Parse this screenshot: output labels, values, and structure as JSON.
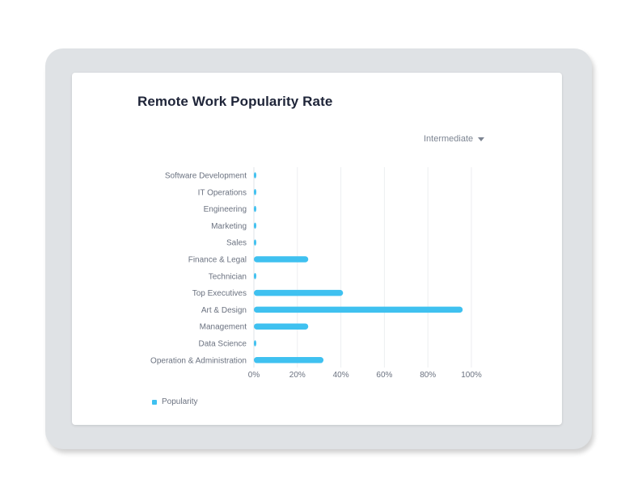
{
  "card": {
    "title": "Remote Work Popularity Rate",
    "filter_label": "Intermediate"
  },
  "legend": {
    "label": "Popularity"
  },
  "colors": {
    "bar": "#3fc1f0",
    "grid": "#eceef1",
    "label": "#6b7280"
  },
  "chart_data": {
    "type": "bar",
    "orientation": "horizontal",
    "title": "Remote Work Popularity Rate",
    "categories": [
      "Software Development",
      "IT Operations",
      "Engineering",
      "Marketing",
      "Sales",
      "Finance & Legal",
      "Technician",
      "Top Executives",
      "Art & Design",
      "Management",
      "Data Science",
      "Operation & Administration"
    ],
    "series": [
      {
        "name": "Popularity",
        "values": [
          1,
          1,
          1,
          1,
          1,
          25,
          1,
          41,
          96,
          25,
          1,
          32
        ]
      }
    ],
    "xlim": [
      0,
      100
    ],
    "xticks": [
      "0%",
      "20%",
      "40%",
      "60%",
      "80%",
      "100%"
    ],
    "xlabel": "",
    "ylabel": "",
    "grid": true,
    "legend_position": "bottom-left"
  }
}
